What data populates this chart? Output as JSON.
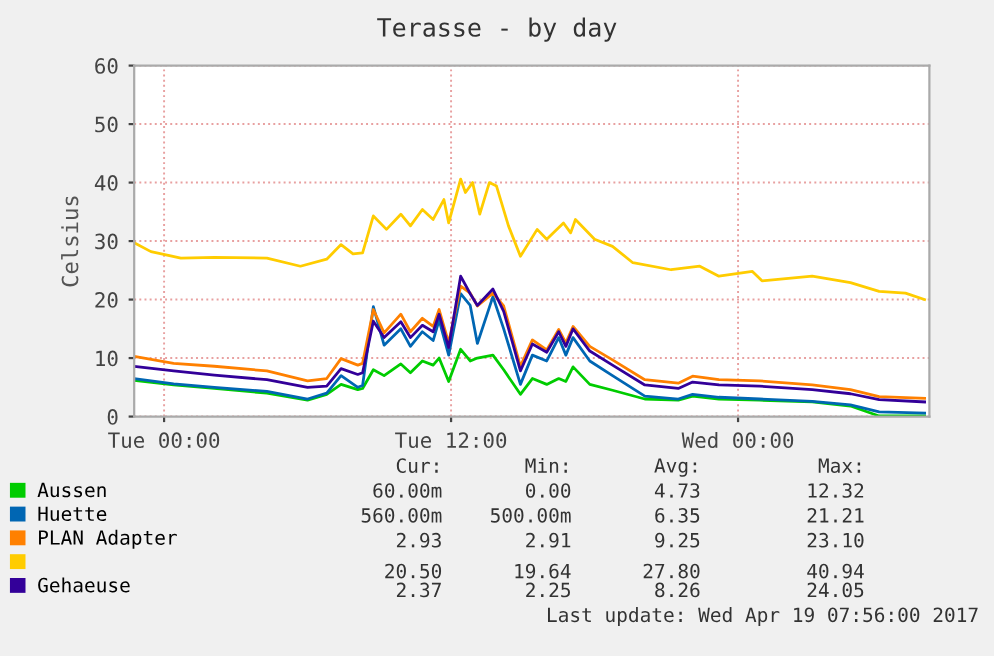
{
  "chart_data": {
    "type": "line",
    "title": "Terasse - by day",
    "ylabel": "Celsius",
    "x": [
      "2017-04-17T22:45",
      "2017-04-18T00:24",
      "2017-04-18T02:06",
      "2017-04-18T04:18",
      "2017-04-18T06:00",
      "2017-04-18T06:48",
      "2017-04-18T07:24",
      "2017-04-18T08:06",
      "2017-04-18T08:18",
      "2017-04-18T08:45",
      "2017-04-18T09:12",
      "2017-04-18T09:54",
      "2017-04-18T10:18",
      "2017-04-18T10:48",
      "2017-04-18T11:15",
      "2017-04-18T11:30",
      "2017-04-18T11:54",
      "2017-04-18T12:24",
      "2017-04-18T12:48",
      "2017-04-18T13:06",
      "2017-04-18T13:45",
      "2017-04-18T14:12",
      "2017-04-18T14:54",
      "2017-04-18T15:24",
      "2017-04-18T16:00",
      "2017-04-18T16:30",
      "2017-04-18T16:48",
      "2017-04-18T17:06",
      "2017-04-18T17:48",
      "2017-04-18T18:45",
      "2017-04-18T20:06",
      "2017-04-18T21:30",
      "2017-04-18T22:06",
      "2017-04-18T23:12",
      "2017-04-19T00:54",
      "2017-04-19T03:06",
      "2017-04-19T04:42",
      "2017-04-19T05:54",
      "2017-04-19T07:48"
    ],
    "series": [
      {
        "name": "Aussen",
        "color": "#00cc00",
        "values": [
          6.2,
          5.4,
          4.8,
          4.0,
          2.8,
          3.8,
          5.5,
          4.6,
          4.8,
          8.0,
          7.0,
          9.0,
          7.5,
          9.5,
          8.8,
          10.0,
          6.0,
          11.5,
          9.5,
          10.0,
          10.5,
          8.0,
          3.8,
          6.5,
          5.5,
          6.5,
          6.0,
          8.5,
          5.5,
          4.5,
          3.0,
          2.8,
          3.5,
          3.0,
          2.8,
          2.5,
          1.8,
          0.1,
          0.1
        ]
      },
      {
        "name": "Huette",
        "color": "#0066b3",
        "values": [
          6.5,
          5.6,
          5.0,
          4.3,
          3.0,
          4.0,
          7.0,
          5.0,
          5.3,
          18.8,
          12.2,
          15.0,
          12.0,
          14.5,
          13.0,
          16.5,
          10.5,
          21,
          19,
          12.5,
          20.5,
          15,
          5.5,
          10.5,
          9.5,
          13.5,
          10.5,
          13.5,
          9.5,
          7.0,
          3.5,
          3.0,
          3.8,
          3.3,
          3.0,
          2.6,
          2.0,
          0.8,
          0.6
        ]
      },
      {
        "name": "PLAN Adapter",
        "color": "#ff8000",
        "values": [
          10.3,
          9.1,
          8.6,
          7.8,
          6.1,
          6.5,
          9.9,
          8.8,
          9.1,
          18.3,
          14.3,
          17.5,
          14.5,
          16.8,
          15.4,
          18.3,
          12.6,
          22.3,
          21.1,
          18.9,
          21.1,
          18.9,
          8.6,
          13.1,
          11.4,
          14.9,
          12.6,
          15.4,
          12.0,
          9.7,
          6.3,
          5.7,
          6.9,
          6.3,
          6.1,
          5.4,
          4.6,
          3.4,
          3.1
        ]
      },
      {
        "name": null,
        "color": "#ffcc00",
        "x": [
          "2017-04-17T22:45",
          "2017-04-17T23:27",
          "2017-04-18T00:42",
          "2017-04-18T02:06",
          "2017-04-18T04:18",
          "2017-04-18T05:42",
          "2017-04-18T06:48",
          "2017-04-18T07:24",
          "2017-04-18T07:54",
          "2017-04-18T08:18",
          "2017-04-18T08:45",
          "2017-04-18T09:18",
          "2017-04-18T09:54",
          "2017-04-18T10:18",
          "2017-04-18T10:48",
          "2017-04-18T11:15",
          "2017-04-18T11:42",
          "2017-04-18T11:54",
          "2017-04-18T12:24",
          "2017-04-18T12:36",
          "2017-04-18T12:54",
          "2017-04-18T13:12",
          "2017-04-18T13:36",
          "2017-04-18T13:54",
          "2017-04-18T14:24",
          "2017-04-18T14:54",
          "2017-04-18T15:36",
          "2017-04-18T16:00",
          "2017-04-18T16:42",
          "2017-04-18T17:00",
          "2017-04-18T17:12",
          "2017-04-18T18:00",
          "2017-04-18T18:45",
          "2017-04-18T19:36",
          "2017-04-18T21:12",
          "2017-04-18T22:24",
          "2017-04-18T23:12",
          "2017-04-19T00:36",
          "2017-04-19T01:00",
          "2017-04-19T03:06",
          "2017-04-19T04:42",
          "2017-04-19T05:54",
          "2017-04-19T07:00",
          "2017-04-19T07:48"
        ],
        "values": [
          29.7,
          28.2,
          27.1,
          27.2,
          27.1,
          25.7,
          26.9,
          29.4,
          27.8,
          28,
          34.3,
          32,
          34.6,
          32.6,
          35.4,
          33.7,
          37.1,
          33.1,
          40.6,
          38.3,
          40,
          34.6,
          40,
          39.4,
          32.6,
          27.4,
          32,
          30.3,
          33.1,
          31.4,
          33.7,
          30.3,
          29.1,
          26.3,
          25.1,
          25.7,
          24,
          24.8,
          23.2,
          24,
          22.9,
          21.4,
          21.1,
          20
        ]
      },
      {
        "name": "Gehaeuse",
        "color": "#330099",
        "values": [
          8.6,
          7.8,
          7.1,
          6.3,
          5.0,
          5.2,
          8.2,
          7.2,
          7.5,
          16.3,
          13.5,
          16.2,
          13.5,
          15.6,
          14.5,
          17.5,
          11.8,
          24,
          21,
          19,
          21.8,
          18,
          7.8,
          12.4,
          11,
          14.5,
          12,
          15,
          11.2,
          8.8,
          5.4,
          4.8,
          5.9,
          5.4,
          5.2,
          4.6,
          3.9,
          2.9,
          2.5
        ]
      }
    ],
    "xlim": [
      "2017-04-17T22:45",
      "2017-04-19T08:00"
    ],
    "xticks": [
      {
        "value": "2017-04-18T00:00",
        "label": "Tue 00:00"
      },
      {
        "value": "2017-04-18T12:00",
        "label": "Tue 12:00"
      },
      {
        "value": "2017-04-19T00:00",
        "label": "Wed 00:00"
      }
    ],
    "ylim": [
      0,
      60
    ],
    "yticks": [
      0,
      10,
      20,
      30,
      40,
      50,
      60
    ],
    "grid": true,
    "legend": "bottom left",
    "marker": "none",
    "line_style": "solid",
    "annotations": [
      "Cur:",
      "Min:",
      "Avg:",
      "Max:",
      "60.00m",
      "0.00",
      "4.73",
      "12.32",
      "560.00m",
      "500.00m",
      "6.35",
      "21.21",
      "2.93",
      "2.91",
      "9.25",
      "23.10",
      "20.50",
      "19.64",
      "27.80",
      "40.94",
      "2.37",
      "2.25",
      "8.26",
      "24.05",
      "Last update: Wed Apr 19 07:56:00 2017"
    ]
  }
}
